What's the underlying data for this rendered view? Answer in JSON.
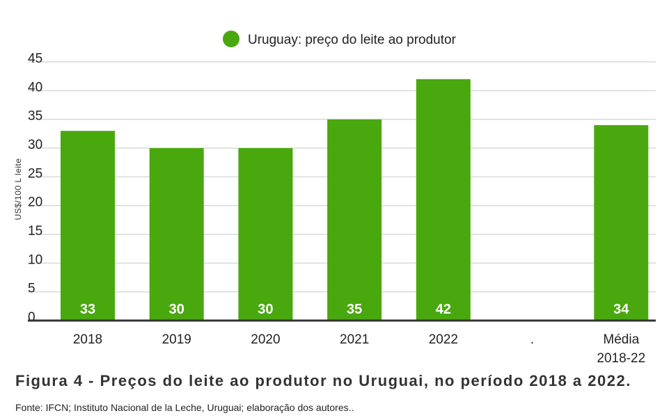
{
  "chart_data": {
    "type": "bar",
    "categories": [
      "2018",
      "2019",
      "2020",
      "2021",
      "2022",
      ".",
      "Média\n2018-22"
    ],
    "series": [
      {
        "name": "Uruguay: preço do leite ao produtor",
        "values": [
          33,
          30,
          30,
          35,
          42,
          null,
          34
        ],
        "data_labels": [
          "33",
          "30",
          "30",
          "35",
          "42",
          "",
          "34"
        ],
        "color": "#4aa80f"
      }
    ],
    "title": "",
    "xlabel": "",
    "ylabel": "US$/100 L leite",
    "ylim": [
      0,
      45
    ],
    "yticks": [
      0,
      5,
      10,
      15,
      20,
      25,
      30,
      35,
      40,
      45
    ],
    "grid": true,
    "legend_position": "top-center"
  },
  "caption": "Figura 4 - Preços do leite ao produtor no Uruguai, no período 2018 a 2022.",
  "source": "Fonte: IFCN; Instituto Nacional de la Leche, Uruguai; elaboração dos autores..",
  "colors": {
    "bar": "#4aa80f",
    "grid": "#d9d9d9",
    "axis": "#333333"
  }
}
